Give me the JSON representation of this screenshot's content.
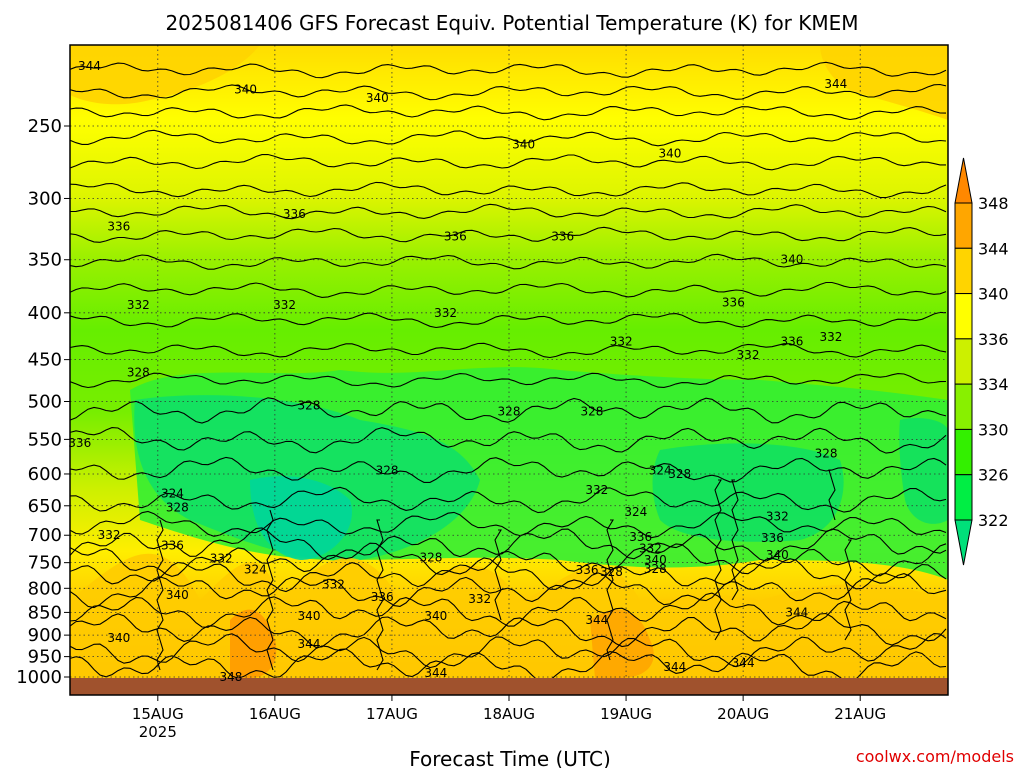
{
  "chart_data": {
    "type": "heatmap",
    "title": "2025081406 GFS Forecast Equiv. Potential Temperature (K) for KMEM",
    "xlabel": "Forecast Time (UTC)",
    "ylabel": "",
    "x_ticks": [
      {
        "label": "15AUG",
        "sublabel": "2025",
        "hours": 18
      },
      {
        "label": "16AUG",
        "sublabel": "",
        "hours": 42
      },
      {
        "label": "17AUG",
        "sublabel": "",
        "hours": 66
      },
      {
        "label": "18AUG",
        "sublabel": "",
        "hours": 90
      },
      {
        "label": "19AUG",
        "sublabel": "",
        "hours": 114
      },
      {
        "label": "20AUG",
        "sublabel": "",
        "hours": 138
      },
      {
        "label": "21AUG",
        "sublabel": "",
        "hours": 162
      }
    ],
    "xlim_hours": [
      0,
      180
    ],
    "y_ticks": [
      1000,
      950,
      900,
      850,
      800,
      750,
      700,
      650,
      600,
      550,
      500,
      450,
      400,
      350,
      300,
      250
    ],
    "ylim_hpa": [
      1000,
      200
    ],
    "y_scale": "log-pressure",
    "colorbar": {
      "levels": [
        322,
        326,
        330,
        334,
        336,
        340,
        344,
        348
      ],
      "colors": [
        "#00e07a",
        "#00ee44",
        "#33f000",
        "#88f000",
        "#ccf000",
        "#ffff00",
        "#ffd400",
        "#ffa600",
        "#ff8800"
      ],
      "extend": "both"
    },
    "contour_labels": [
      {
        "text": "344",
        "hours": 4,
        "hpa": 215
      },
      {
        "text": "340",
        "hours": 36,
        "hpa": 228
      },
      {
        "text": "340",
        "hours": 63,
        "hpa": 233
      },
      {
        "text": "340",
        "hours": 93,
        "hpa": 262
      },
      {
        "text": "340",
        "hours": 123,
        "hpa": 268
      },
      {
        "text": "344",
        "hours": 157,
        "hpa": 225
      },
      {
        "text": "336",
        "hours": 10,
        "hpa": 322
      },
      {
        "text": "336",
        "hours": 46,
        "hpa": 312
      },
      {
        "text": "336",
        "hours": 79,
        "hpa": 330
      },
      {
        "text": "336",
        "hours": 101,
        "hpa": 330
      },
      {
        "text": "340",
        "hours": 148,
        "hpa": 350
      },
      {
        "text": "332",
        "hours": 14,
        "hpa": 392
      },
      {
        "text": "332",
        "hours": 44,
        "hpa": 392
      },
      {
        "text": "332",
        "hours": 77,
        "hpa": 400
      },
      {
        "text": "336",
        "hours": 136,
        "hpa": 390
      },
      {
        "text": "332",
        "hours": 113,
        "hpa": 430
      },
      {
        "text": "332",
        "hours": 139,
        "hpa": 445
      },
      {
        "text": "336",
        "hours": 148,
        "hpa": 430
      },
      {
        "text": "332",
        "hours": 156,
        "hpa": 425
      },
      {
        "text": "328",
        "hours": 14,
        "hpa": 465
      },
      {
        "text": "328",
        "hours": 49,
        "hpa": 505
      },
      {
        "text": "328",
        "hours": 90,
        "hpa": 513
      },
      {
        "text": "328",
        "hours": 107,
        "hpa": 513
      },
      {
        "text": "336",
        "hours": 2,
        "hpa": 555
      },
      {
        "text": "328",
        "hours": 65,
        "hpa": 595
      },
      {
        "text": "324",
        "hours": 121,
        "hpa": 595
      },
      {
        "text": "328",
        "hours": 125,
        "hpa": 600
      },
      {
        "text": "328",
        "hours": 155,
        "hpa": 570
      },
      {
        "text": "324",
        "hours": 21,
        "hpa": 630
      },
      {
        "text": "328",
        "hours": 22,
        "hpa": 653
      },
      {
        "text": "332",
        "hours": 108,
        "hpa": 625
      },
      {
        "text": "324",
        "hours": 116,
        "hpa": 660
      },
      {
        "text": "332",
        "hours": 145,
        "hpa": 668
      },
      {
        "text": "332",
        "hours": 8,
        "hpa": 700
      },
      {
        "text": "336",
        "hours": 21,
        "hpa": 718
      },
      {
        "text": "336",
        "hours": 117,
        "hpa": 703
      },
      {
        "text": "332",
        "hours": 119,
        "hpa": 724
      },
      {
        "text": "336",
        "hours": 144,
        "hpa": 705
      },
      {
        "text": "332",
        "hours": 31,
        "hpa": 742
      },
      {
        "text": "324",
        "hours": 38,
        "hpa": 763
      },
      {
        "text": "328",
        "hours": 74,
        "hpa": 740
      },
      {
        "text": "340",
        "hours": 120,
        "hpa": 745
      },
      {
        "text": "340",
        "hours": 145,
        "hpa": 736
      },
      {
        "text": "328",
        "hours": 111,
        "hpa": 768
      },
      {
        "text": "328",
        "hours": 120,
        "hpa": 762
      },
      {
        "text": "332",
        "hours": 54,
        "hpa": 792
      },
      {
        "text": "336",
        "hours": 64,
        "hpa": 818
      },
      {
        "text": "332",
        "hours": 84,
        "hpa": 822
      },
      {
        "text": "336",
        "hours": 106,
        "hpa": 764
      },
      {
        "text": "340",
        "hours": 22,
        "hpa": 814
      },
      {
        "text": "340",
        "hours": 49,
        "hpa": 858
      },
      {
        "text": "340",
        "hours": 75,
        "hpa": 858
      },
      {
        "text": "344",
        "hours": 108,
        "hpa": 866
      },
      {
        "text": "344",
        "hours": 149,
        "hpa": 850
      },
      {
        "text": "340",
        "hours": 10,
        "hpa": 907
      },
      {
        "text": "344",
        "hours": 49,
        "hpa": 920
      },
      {
        "text": "344",
        "hours": 75,
        "hpa": 990
      },
      {
        "text": "344",
        "hours": 124,
        "hpa": 975
      },
      {
        "text": "344",
        "hours": 138,
        "hpa": 965
      },
      {
        "text": "348",
        "hours": 33,
        "hpa": 1000
      }
    ]
  },
  "footer": {
    "source": "coolwx.com/models"
  }
}
